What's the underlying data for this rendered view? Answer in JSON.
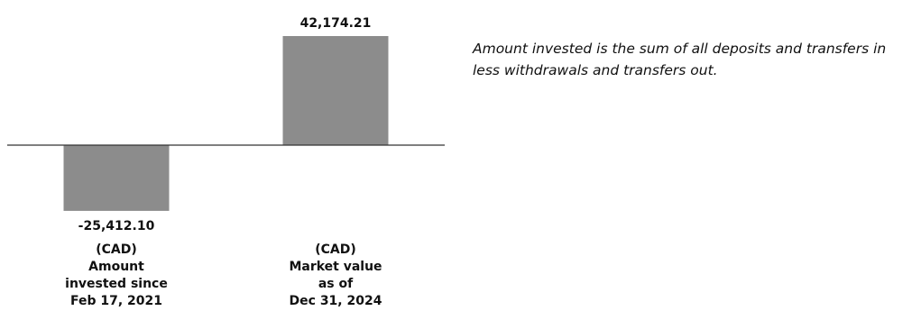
{
  "chart_data": {
    "type": "bar",
    "title": "",
    "xlabel": "",
    "ylabel": "",
    "categories": [
      [
        "(CAD)",
        "Amount",
        "invested since",
        "Feb 17, 2021"
      ],
      [
        "(CAD)",
        "Market value",
        "as of",
        "Dec 31, 2024"
      ]
    ],
    "values": [
      -25412.1,
      42174.21
    ],
    "value_labels": [
      "-25,412.10",
      "42,174.21"
    ],
    "bar_color": "#8c8c8c",
    "axis_color": "#333333",
    "grid": false,
    "legend": "none"
  },
  "note": {
    "lines": [
      "Amount invested is the sum of all deposits and transfers in",
      "less withdrawals and transfers out."
    ]
  }
}
